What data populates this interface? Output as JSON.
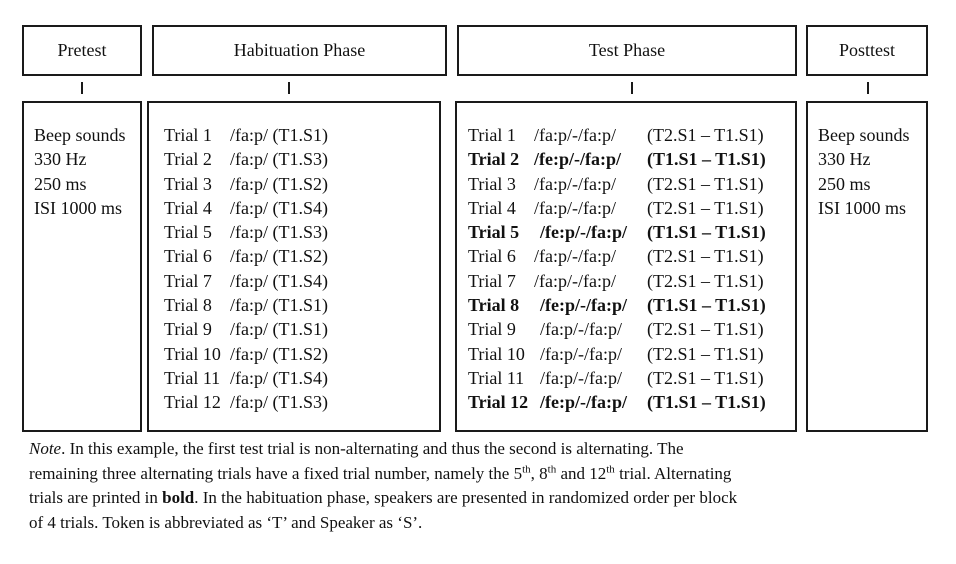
{
  "headers": {
    "pretest": "Pretest",
    "habituation": "Habituation Phase",
    "test": "Test Phase",
    "posttest": "Posttest"
  },
  "pretest": {
    "lines": [
      "Beep sounds",
      "330 Hz",
      "250 ms",
      "ISI 1000 ms"
    ]
  },
  "posttest": {
    "lines": [
      "Beep sounds",
      "330 Hz",
      "250 ms",
      "ISI 1000 ms"
    ]
  },
  "habituation": {
    "trials": [
      {
        "trial": "Trial 1",
        "stimulus": "/fa:p/ (T1.S1)"
      },
      {
        "trial": "Trial 2",
        "stimulus": "/fa:p/ (T1.S3)"
      },
      {
        "trial": "Trial 3",
        "stimulus": "/fa:p/ (T1.S2)"
      },
      {
        "trial": "Trial 4",
        "stimulus": "/fa:p/ (T1.S4)"
      },
      {
        "trial": "Trial 5",
        "stimulus": "/fa:p/ (T1.S3)"
      },
      {
        "trial": "Trial 6",
        "stimulus": "/fa:p/ (T1.S2)"
      },
      {
        "trial": "Trial 7",
        "stimulus": "/fa:p/ (T1.S4)"
      },
      {
        "trial": "Trial 8",
        "stimulus": "/fa:p/ (T1.S1)"
      },
      {
        "trial": "Trial 9",
        "stimulus": "/fa:p/ (T1.S1)"
      },
      {
        "trial": "Trial 10",
        "stimulus": "/fa:p/ (T1.S2)"
      },
      {
        "trial": "Trial 11",
        "stimulus": "/fa:p/ (T1.S4)"
      },
      {
        "trial": "Trial 12",
        "stimulus": "/fa:p/ (T1.S3)"
      }
    ]
  },
  "test": {
    "trials": [
      {
        "trial": "Trial 1",
        "stimulus": "/fa:p/-/fa:p/",
        "tokens": "(T2.S1 – T1.S1)",
        "alternating": false
      },
      {
        "trial": "Trial 2",
        "stimulus": "/fe:p/-/fa:p/",
        "tokens": "(T1.S1 – T1.S1)",
        "alternating": true
      },
      {
        "trial": "Trial 3",
        "stimulus": "/fa:p/-/fa:p/",
        "tokens": "(T2.S1 – T1.S1)",
        "alternating": false
      },
      {
        "trial": "Trial 4",
        "stimulus": "/fa:p/-/fa:p/",
        "tokens": "(T2.S1 – T1.S1)",
        "alternating": false
      },
      {
        "trial": "Trial 5",
        "stimulus": "/fe:p/-/fa:p/",
        "tokens": "(T1.S1 – T1.S1)",
        "alternating": true
      },
      {
        "trial": "Trial 6",
        "stimulus": "/fa:p/-/fa:p/",
        "tokens": "(T2.S1 – T1.S1)",
        "alternating": false
      },
      {
        "trial": "Trial 7",
        "stimulus": "/fa:p/-/fa:p/",
        "tokens": "(T2.S1 – T1.S1)",
        "alternating": false
      },
      {
        "trial": "Trial 8",
        "stimulus": "/fe:p/-/fa:p/",
        "tokens": "(T1.S1 – T1.S1)",
        "alternating": true
      },
      {
        "trial": "Trial 9",
        "stimulus": "/fa:p/-/fa:p/",
        "tokens": "(T2.S1 – T1.S1)",
        "alternating": false
      },
      {
        "trial": "Trial 10",
        "stimulus": "/fa:p/-/fa:p/",
        "tokens": "(T2.S1 – T1.S1)",
        "alternating": false
      },
      {
        "trial": "Trial 11",
        "stimulus": "/fa:p/-/fa:p/",
        "tokens": "(T2.S1 – T1.S1)",
        "alternating": false
      },
      {
        "trial": "Trial 12",
        "stimulus": "/fe:p/-/fa:p/",
        "tokens": "(T1.S1 – T1.S1)",
        "alternating": true
      }
    ]
  },
  "note": {
    "label": "Note",
    "line1_rest": ". In this example, the first test trial is non-alternating and thus the second is alternating. The",
    "line2_a": "remaining three  alternating trials have a fixed trial number, namely the 5",
    "ord_th": "th",
    "line2_b": ", 8",
    "line2_c": " and 12",
    "line2_d": " trial. Alternating",
    "line3_a": "trials are printed in ",
    "line3_bold": "bold",
    "line3_b": ". In the habituation phase, speakers are presented in randomized order per block",
    "line4": "of 4 trials. Token is abbreviated as ‘T’ and Speaker as ‘S’."
  }
}
